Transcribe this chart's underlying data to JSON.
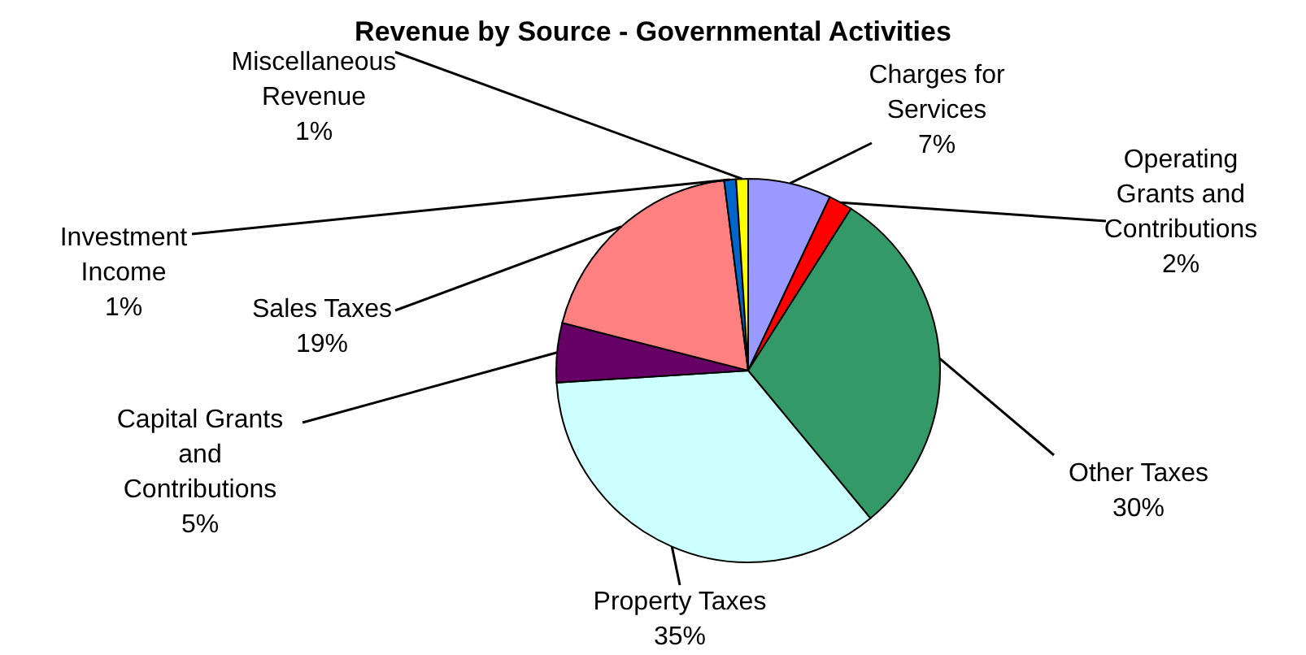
{
  "chart_data": {
    "type": "pie",
    "title": "Revenue by Source - Governmental Activities",
    "categories": [
      "Charges for Services",
      "Operating Grants and Contributions",
      "Other Taxes",
      "Property Taxes",
      "Capital Grants and Contributions",
      "Sales Taxes",
      "Investment Income",
      "Miscellaneous Revenue"
    ],
    "values": [
      7,
      2,
      30,
      35,
      5,
      19,
      1,
      1
    ],
    "value_labels": [
      "7%",
      "2%",
      "30%",
      "35%",
      "5%",
      "19%",
      "1%",
      "1%"
    ],
    "colors": [
      "#9999ff",
      "#ff0000",
      "#339966",
      "#ccffff",
      "#660066",
      "#ff8080",
      "#0066cc",
      "#ffff00"
    ],
    "legend": false
  }
}
